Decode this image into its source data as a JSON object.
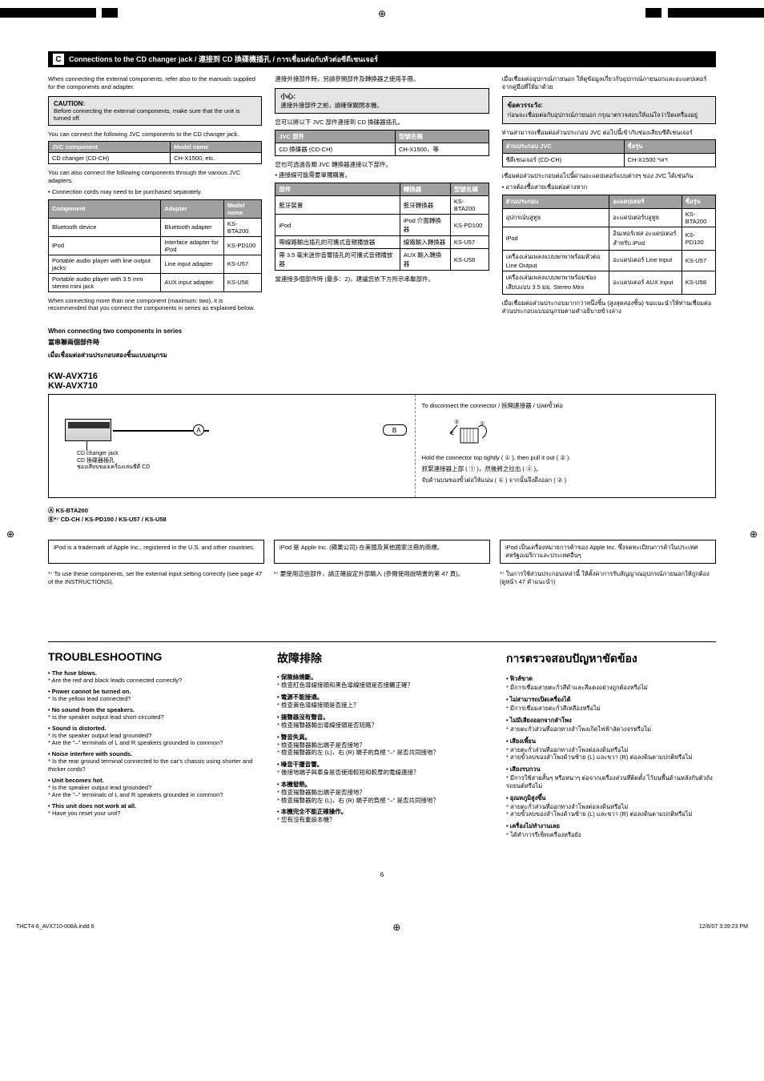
{
  "colors": {
    "black": "#000000",
    "white": "#ffffff",
    "header_bg": "#000000",
    "header_fg": "#ffffff",
    "caution_bg": "#e5e5e5",
    "table_header_bg": "#a0a0a0",
    "table_header_fg": "#ffffff"
  },
  "fonts": {
    "body": "Arial, Helvetica, sans-serif",
    "heavy": "\"Arial Black\", Arial",
    "body_size_pt": 7.5,
    "heading_size_pt": 14
  },
  "header": {
    "label": "C",
    "title": "Connections to the CD changer jack / 連接到 CD 換碟機插孔 / การเชื่อมต่อกับหัวต่อซีดีเชนเจอร์"
  },
  "col_en": {
    "intro": "When connecting the external components, refer also to the manuals supplied for the components and adapter.",
    "caution_title": "CAUTION:",
    "caution_body": "Before connecting the external components, make sure that the unit is turned off.",
    "cd_intro": "You can connect the following JVC components to the CD changer jack.",
    "t1_h1": "JVC component",
    "t1_h2": "Model name",
    "t1_r1c1": "CD changer (CD-CH)",
    "t1_r1c2": "CH-X1500, etc.",
    "adp_intro": "You can also connect the following components through the various JVC adapters.",
    "adp_note": "Connection cords may need to be purchased separately.",
    "t2_h1": "Component",
    "t2_h2": "Adapter",
    "t2_h3": "Model name",
    "t2_r1c1": "Bluetooth device",
    "t2_r1c2": "Bluetooth adapter",
    "t2_r1c3": "KS-BTA200",
    "t2_r2c1": "iPod",
    "t2_r2c2": "Interface adapter for iPod",
    "t2_r2c3": "KS-PD100",
    "t2_r3c1": "Portable audio player with line output jacks",
    "t2_r3c2": "Line input adapter",
    "t2_r3c3": "KS-U57",
    "t2_r4c1": "Portable audio player with 3.5 mm stereo mini jack",
    "t2_r4c2": "AUX input adapter",
    "t2_r4c3": "KS-U58",
    "multi_note": "When connecting more than one component (maximum: two), it is recommended that you connect the components in series as explained below."
  },
  "col_zh": {
    "intro": "連接外接部件時，另請參閱部件及轉換器之使用手冊。",
    "caution_title": "小心:",
    "caution_body": "連接外接部件之前，請確保關閉本機。",
    "cd_intro": "您可以將以下 JVC 部件連接到 CD 換碟器插孔。",
    "t1_h1": "JVC 部件",
    "t1_h2": "型號名稱",
    "t1_r1c1": "CD 換碟器 (CD-CH)",
    "t1_r1c2": "CH-X1500，等",
    "adp_intro": "您也可透過各類 JVC 轉換器連接以下部件。",
    "adp_note": "連接線可能需要單獨購置。",
    "t2_h1": "部件",
    "t2_h2": "轉換器",
    "t2_h3": "型號名稱",
    "t2_r1c1": "藍牙裝置",
    "t2_r1c2": "藍牙轉換器",
    "t2_r1c3": "KS-BTA200",
    "t2_r2c1": "iPod",
    "t2_r2c2": "iPod 介面轉換器",
    "t2_r2c3": "KS-PD100",
    "t2_r3c1": "帶線路輸出插孔的可攜式音頻播放器",
    "t2_r3c2": "線路輸入轉換器",
    "t2_r3c3": "KS-U57",
    "t2_r4c1": "帶 3.5 毫米迷你音響插孔的可攜式音頻播放器",
    "t2_r4c2": "AUX 輸入轉換器",
    "t2_r4c3": "KS-U58",
    "multi_note": "當連接多個部件時 (最多：2)，建議您依下方所示串聯部件。"
  },
  "col_th": {
    "intro": "เมื่อเชื่อมต่ออุปกรณ์ภายนอก ให้ดูข้อมูลเกี่ยวกับอุปกรณ์ภายนอกและอะแดปเตอร์จากคู่มือที่ให้มาด้วย",
    "caution_title": "ข้อควรระวัง:",
    "caution_body": "ก่อนจะเชื่อมต่อกับอุปกรณ์ภายนอก กรุณาตรวจสอบให้แน่ใจว่าปิดเครื่องอยู่",
    "cd_intro": "ท่านสามารถเชื่อมต่อส่วนประกอบ JVC ต่อไปนี้เข้ากับช่องเสียบซีดีเชนเจอร์",
    "t1_h1": "ส่วนประกอบ JVC",
    "t1_h2": "ชื่อรุ่น",
    "t1_r1c1": "ซีดีเชนเจอร์ (CD-CH)",
    "t1_r1c2": "CH-X1500 ฯลฯ",
    "adp_intro": "เชื่อมต่อส่วนประกอบต่อไปนี้ผ่านอะแดปเตอร์แบบต่างๆ ของ JVC ได้เช่นกัน",
    "adp_note": "อาจต้องซื้อสายเชื่อมต่อต่างหาก",
    "t2_h1": "ส่วนประกอบ",
    "t2_h2": "อะแดปเตอร์",
    "t2_h3": "ชื่อรุ่น",
    "t2_r1c1": "อุปกรณ์บลูทูธ",
    "t2_r1c2": "อะแดปเตอร์บลูทูธ",
    "t2_r1c3": "KS-BTA200",
    "t2_r2c1": "iPod",
    "t2_r2c2": "อินเทอร์เฟส อะแดปเตอร์สำหรับ iPod",
    "t2_r2c3": "KS-PD100",
    "t2_r3c1": "เครื่องเล่นเพลงแบบพกพาพร้อมหัวต่อ Line Output",
    "t2_r3c2": "อะแดปเตอร์ Line Input",
    "t2_r3c3": "KS-U57",
    "t2_r4c1": "เครื่องเล่นเพลงแบบพกพาพร้อมช่องเสียบแบบ 3.5 มม. Stereo Mini",
    "t2_r4c2": "อะแดปเตอร์ AUX Input",
    "t2_r4c3": "KS-U58",
    "multi_note": "เมื่อเชื่อมต่อส่วนประกอบมากกว่าหนึ่งชิ้น (สูงสุดสองชิ้น) ขอแนะนำให้ท่านเชื่อมต่อส่วนประกอบแบบอนุกรมตามคำอธิบายข้างล่าง"
  },
  "series": {
    "en": "When connecting two components in series",
    "zh": "當串聯兩個部件時",
    "th": "เมื่อเชื่อมต่อส่วนประกอบสองชิ้นแบบอนุกรม"
  },
  "diagram": {
    "model1": "KW-AVX716",
    "model2": "KW-AVX710",
    "a": "A",
    "b": "B",
    "cd_caption": "CD changer jack\nCD 換碟器插孔\nช่องเสียบของเครื่องเล่นซีดี CD",
    "disconnect": "To disconnect the connector / 拆開連接器 / ปลดขั้วต่อ",
    "hold_en": "Hold the connector top tightly ( ① ), then pull it out ( ② ).",
    "hold_zh": "抓緊連接器上部 ( ① )，然後將之拉出 ( ② )。",
    "hold_th": "จับด้านบนของขั้วต่อให้แน่น ( ① ) จากนั้นจึงดึงออก ( ② )"
  },
  "fn": {
    "a_line": "Ⓐ   KS-BTA200",
    "b_line": "Ⓑ*⁷ CD-CH / KS-PD100 / KS-U57 / KS-U58",
    "ipod_en": "iPod is a trademark of Apple Inc., registered in the U.S. and other countries.",
    "ipod_zh": "iPod 是 Apple Inc. (蘋果公司) 在美國及其他國家注冊的商標。",
    "ipod_th": "iPod เป็นเครื่องหมายการค้าของ Apple Inc. ซึ่งจดทะเบียนการค้าในประเทศสหรัฐอเมริกาและประเทศอื่นๆ",
    "s7_en": "*⁷  To use these components, set the external input setting correctly (see page 47 of the INSTRUCTIONS).",
    "s7_zh": "*⁷ 要使用這些部件，請正確設定外部輸入 (參閱使用說明書的第 47 頁)。",
    "s7_th": "*⁷ ในการใช้ส่วนประกอบเหล่านี้ ให้ตั้งค่าการรับสัญญาณอุปกรณ์ภายนอกให้ถูกต้อง (ดูหน้า 47 คำแนะนำ)"
  },
  "ts": {
    "en_head": "TROUBLESHOOTING",
    "zh_head": "故障排除",
    "th_head": "การตรวจสอบปัญหาขัดข้อง",
    "en": [
      {
        "t": "The fuse blows.",
        "b": "Are the red and black leads connected correctly?"
      },
      {
        "t": "Power cannot be turned on.",
        "b": "Is the yellow lead connected?"
      },
      {
        "t": "No sound from the speakers.",
        "b": "Is the speaker output lead short-circuited?"
      },
      {
        "t": "Sound is distorted.",
        "b": "Is the speaker output lead grounded?",
        "b2": "Are the \"–\" terminals of L and R speakers grounded in common?"
      },
      {
        "t": "Noise interfere with sounds.",
        "b": "Is the rear ground terminal connected to the car's chassis using shorter and thicker cords?"
      },
      {
        "t": "Unit becomes hot.",
        "b": "Is the speaker output lead grounded?",
        "b2": "Are the \"–\" terminals of L and R speakers grounded in common?"
      },
      {
        "t": "This unit does not work at all.",
        "b": "Have you reset your unit?"
      }
    ],
    "zh": [
      {
        "t": "保險絲燒斷。",
        "b": "檢查紅色導線接頭和黑色導線接頭是否接觸正確？"
      },
      {
        "t": "電源不能接通。",
        "b": "檢查黃色導線接頭是否接上？"
      },
      {
        "t": "揚聲器沒有聲音。",
        "b": "檢查揚聲器輸出導線接頭是否短路？"
      },
      {
        "t": "聲音失真。",
        "b": "檢查揚聲器輸出端子是否接地？",
        "b2": "檢查揚聲器的左 (L)，右 (R) 端子的負極 \"–\" 是否共同接地？"
      },
      {
        "t": "噪音干擾音響。",
        "b": "後接地端子與車身是否使用較短和較厚的電線連接？"
      },
      {
        "t": "本機發熱。",
        "b": "檢查揚聲器輸出端子是否接地？",
        "b2": "檢查揚聲器的左 (L)，右 (R) 端子的負極 \"–\" 是否共同接地？"
      },
      {
        "t": "本機完全不能正確操作。",
        "b": "您有沒有重設本機？"
      }
    ],
    "th": [
      {
        "t": "ฟิวส์ขาด",
        "b": "มีการเชื่อมสายตะกั่วสีดำและสีแดงอย่างถูกต้องหรือไม่"
      },
      {
        "t": "ไม่สามารถเปิดเครื่องได้",
        "b": "มีการเชื่อมสายตะกั่วสีเหลืองหรือไม่"
      },
      {
        "t": "ไม่มีเสียงออกจากลำโพง",
        "b": "สายตะกั่วส่วนที่ออกทางลำโพงเกิดไฟฟ้าลัดวงจรหรือไม่"
      },
      {
        "t": "เสียงเพี้ยน",
        "b": "สายตะกั่วส่วนที่ออกทางลำโพงต่อลงดินหรือไม่",
        "b2": "สายขั้วลบของลำโพงด้านซ้าย (L) และขวา (R) ต่อลงดินตามปกติหรือไม่"
      },
      {
        "t": "เสียงรบกวน",
        "b": "มีการใช้สายสั้นๆ หรือหนาๆ ต่อจากเครื่องส่วนที่ติดตั้ง ไว้บนพื้นด้านหลังกับตัวถังรถยนต์หรือไม่"
      },
      {
        "t": "อุณหภูมิสูงขึ้น",
        "b": "สายตะกั่วส่วนที่ออกทางลำโพงต่อลงดินหรือไม่",
        "b2": "สายขั้วลบของลำโพงด้านซ้าย (L) และขวา (R) ต่อลงดินตามปกติหรือไม่"
      },
      {
        "t": "เครื่องไม่ทำงานเลย",
        "b": "ได้ทำการรีเซ็ทเครื่องหรือยัง"
      }
    ]
  },
  "footer": {
    "page": "6",
    "file": "THCT4-6_AVX710-008A.indd   6",
    "date": "12/6/07   3:39:23 PM"
  }
}
